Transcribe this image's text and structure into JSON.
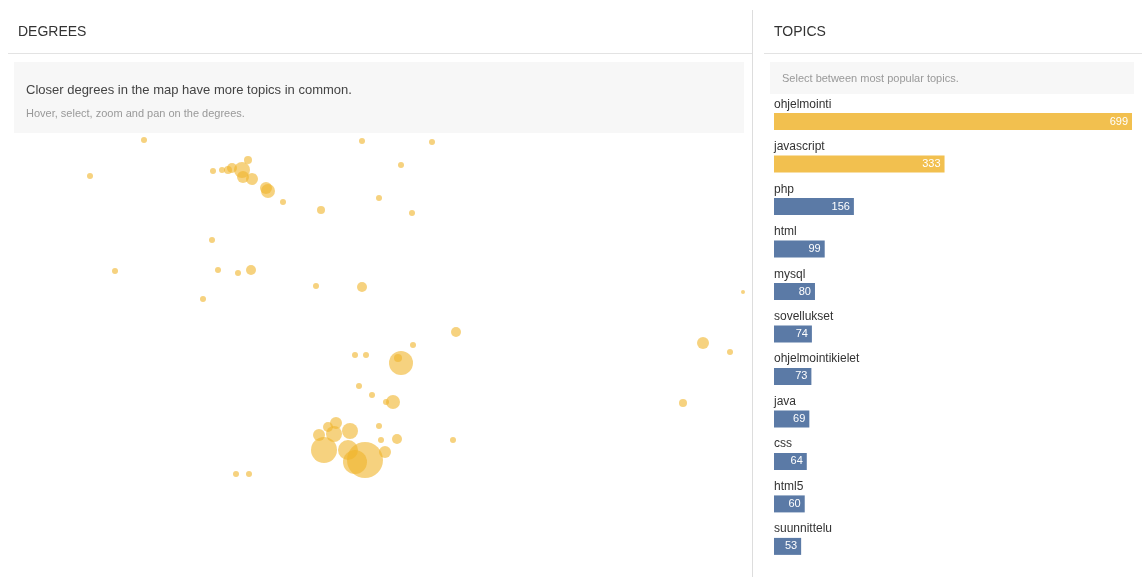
{
  "chart_data": [
    {
      "type": "other",
      "title": "DEGREES",
      "subtitle": "Closer degrees in the map have more topics in common.",
      "annotations": [
        "Hover, select, zoom and pan on the degrees."
      ]
    },
    {
      "type": "bar",
      "title": "TOPICS",
      "subtitle": "Select between most popular topics.",
      "orientation": "horizontal",
      "data_labels": true,
      "categories": [
        "ohjelmointi",
        "javascript",
        "php",
        "html",
        "mysql",
        "sovellukset",
        "ohjelmointikielet",
        "java",
        "css",
        "html5",
        "suunnittelu"
      ],
      "values": [
        699,
        333,
        156,
        99,
        80,
        74,
        73,
        69,
        64,
        60,
        53
      ],
      "colors": [
        "#f2c04f",
        "#f2c04f",
        "#5b7aa6",
        "#5b7aa6",
        "#5b7aa6",
        "#5b7aa6",
        "#5b7aa6",
        "#5b7aa6",
        "#5b7aa6",
        "#5b7aa6",
        "#5b7aa6"
      ]
    }
  ]
}
